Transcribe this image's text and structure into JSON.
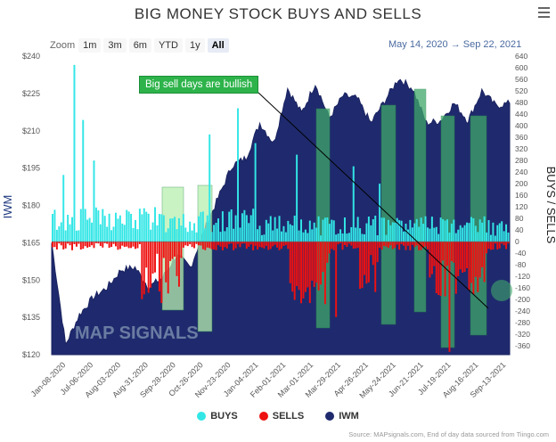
{
  "title": "BIG MONEY STOCK BUYS AND SELLS",
  "zoom": {
    "label": "Zoom",
    "buttons": [
      "1m",
      "3m",
      "6m",
      "YTD",
      "1y",
      "All"
    ],
    "active": "All"
  },
  "range": {
    "from": "May 14, 2020",
    "arrow": "→",
    "to": "Sep 22, 2021"
  },
  "annotation": "Big sell days are bullish",
  "legend": [
    {
      "name": "BUYS",
      "color": "#33e6e6"
    },
    {
      "name": "SELLS",
      "color": "#ee1111"
    },
    {
      "name": "IWM",
      "color": "#1f2a6e"
    }
  ],
  "source": "Source: MAPsignals.com, End of day data sourced from Tiingo.com",
  "logo": "MAP SIGNALS",
  "chart_data": {
    "type": "bar",
    "left_axis": {
      "label": "IWM",
      "ticks": [
        "$240",
        "$225",
        "$210",
        "$195",
        "$180",
        "$165",
        "$150",
        "$135",
        "$120"
      ],
      "range": [
        120,
        240
      ]
    },
    "right_axis": {
      "label": "BUYS / SELLS",
      "ticks": [
        "640",
        "600",
        "560",
        "520",
        "480",
        "440",
        "400",
        "360",
        "320",
        "280",
        "240",
        "200",
        "160",
        "120",
        "80",
        "40",
        "0",
        "-40",
        "-80",
        "-120",
        "-160",
        "-200",
        "-240",
        "-280",
        "-320",
        "-360"
      ],
      "range": [
        -390,
        640
      ]
    },
    "x_ticks": [
      "Jan-08-2020",
      "Jul-06-2020",
      "Aug-03-2020",
      "Aug-31-2020",
      "Sep-28-2020",
      "Oct-26-2020",
      "Nov-23-2020",
      "Jan-04-2021",
      "Feb-01-2021",
      "Mar-01-2021",
      "Mar-29-2021",
      "Apr-26-2021",
      "May-24-2021",
      "Jun-21-2021",
      "Jul-19-2021",
      "Aug-16-2021",
      "Sep-13-2021"
    ],
    "iwm": [
      {
        "d": "Jan-08-2020",
        "v": 165
      },
      {
        "d": "Mar-2020",
        "v": 124
      },
      {
        "d": "Apr-2020",
        "v": 136
      },
      {
        "d": "Jun-2020",
        "v": 143
      },
      {
        "d": "Jul-06-2020",
        "v": 147
      },
      {
        "d": "Aug-03-2020",
        "v": 154
      },
      {
        "d": "Aug-31-2020",
        "v": 155
      },
      {
        "d": "Sep-2020",
        "v": 147
      },
      {
        "d": "Sep-28-2020",
        "v": 151
      },
      {
        "d": "Oct-2020",
        "v": 160
      },
      {
        "d": "Oct-26-2020",
        "v": 155
      },
      {
        "d": "Nov-2020",
        "v": 170
      },
      {
        "d": "Nov-23-2020",
        "v": 183
      },
      {
        "d": "Dec-2020",
        "v": 196
      },
      {
        "d": "Jan-04-2021",
        "v": 199
      },
      {
        "d": "Jan-2021",
        "v": 213
      },
      {
        "d": "Feb-01-2021",
        "v": 205
      },
      {
        "d": "Feb-2021",
        "v": 227
      },
      {
        "d": "Mar-01-2021",
        "v": 217
      },
      {
        "d": "Mar-2021",
        "v": 229
      },
      {
        "d": "Mar-29-2021",
        "v": 215
      },
      {
        "d": "Apr-2021",
        "v": 224
      },
      {
        "d": "Apr-26-2021",
        "v": 223
      },
      {
        "d": "May-2021",
        "v": 213
      },
      {
        "d": "May-24-2021",
        "v": 222
      },
      {
        "d": "Jun-2021",
        "v": 231
      },
      {
        "d": "Jun-21-2021",
        "v": 227
      },
      {
        "d": "Jul-2021",
        "v": 213
      },
      {
        "d": "Jul-19-2021",
        "v": 214
      },
      {
        "d": "Aug-2021",
        "v": 221
      },
      {
        "d": "Aug-16-2021",
        "v": 214
      },
      {
        "d": "Sep-2021",
        "v": 226
      },
      {
        "d": "Sep-13-2021",
        "v": 220
      },
      {
        "d": "Sep-22-2021",
        "v": 221
      }
    ],
    "buys_peak": 610,
    "sells_peak": -380,
    "highlight_periods": [
      "Sep-2020",
      "Oct-2020",
      "Mar-2021",
      "Apr-2021",
      "May-2021",
      "Jun-2021",
      "Jul-2021",
      "Aug-2021"
    ]
  }
}
